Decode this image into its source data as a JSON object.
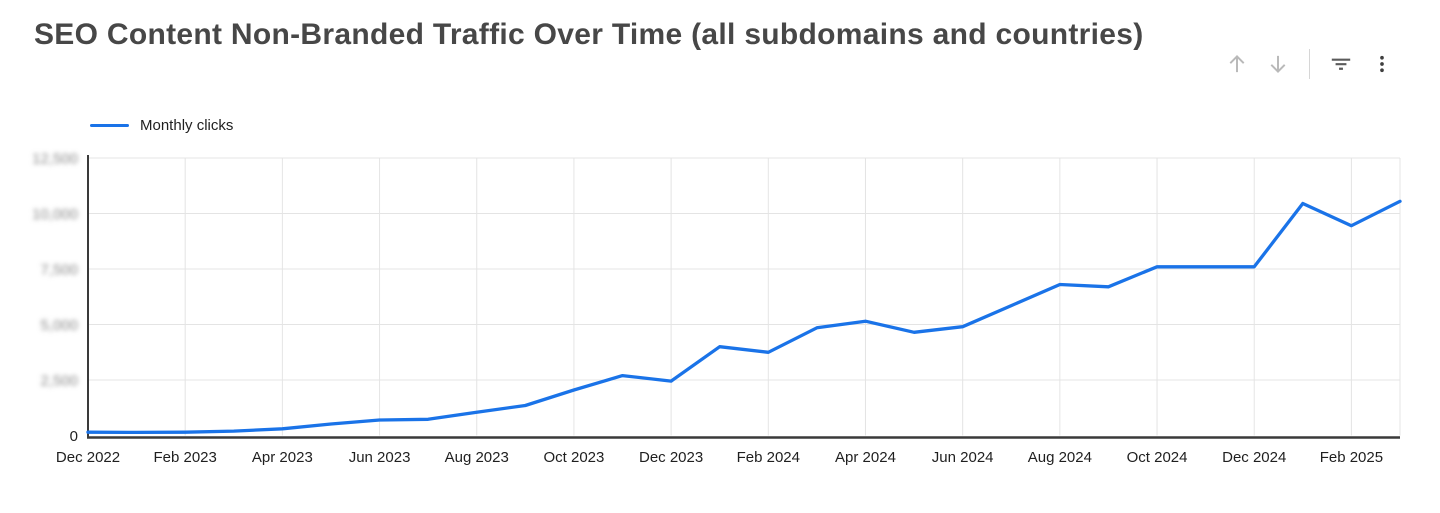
{
  "header": {
    "title": "SEO Content Non-Branded Traffic Over Time (all subdomains and countries)"
  },
  "controls": {
    "icons": [
      {
        "name": "arrow-up-icon"
      },
      {
        "name": "arrow-down-icon"
      },
      {
        "name": "filter-list-icon"
      },
      {
        "name": "kebab-menu-icon"
      }
    ]
  },
  "legend": {
    "label": "Monthly clicks",
    "swatch_color": "#1a73e8"
  },
  "colors": {
    "line": "#1a73e8",
    "grid": "#e4e4e4",
    "axis": "#3a3a3a",
    "tick_label": "#1f1f1f",
    "blurred_label": "#8a8a8a",
    "title": "#474747",
    "arrow_icon": "#b9b9b9",
    "filter_icon": "#5b5b5b",
    "kebab_icon": "#3f3f3f"
  },
  "chart_data": {
    "type": "line",
    "title": "SEO Content Non-Branded Traffic Over Time (all subdomains and countries)",
    "x": [
      "Dec 2022",
      "Jan 2023",
      "Feb 2023",
      "Mar 2023",
      "Apr 2023",
      "May 2023",
      "Jun 2023",
      "Jul 2023",
      "Aug 2023",
      "Sep 2023",
      "Oct 2023",
      "Nov 2023",
      "Dec 2023",
      "Jan 2024",
      "Feb 2024",
      "Mar 2024",
      "Apr 2024",
      "May 2024",
      "Jun 2024",
      "Jul 2024",
      "Aug 2024",
      "Sep 2024",
      "Oct 2024",
      "Nov 2024",
      "Dec 2024",
      "Jan 2025",
      "Feb 2025",
      "Mar 2025"
    ],
    "series": [
      {
        "name": "Monthly clicks",
        "color": "#1a73e8",
        "values": [
          150,
          140,
          150,
          200,
          300,
          520,
          700,
          730,
          1050,
          1350,
          2050,
          2700,
          2450,
          4000,
          3750,
          4850,
          5150,
          4650,
          4900,
          5850,
          6800,
          6700,
          7600,
          7600,
          7600,
          10450,
          9450,
          10550
        ]
      }
    ],
    "x_tick_every": 2,
    "x_tick_labels": [
      "Dec 2022",
      "Feb 2023",
      "Apr 2023",
      "Jun 2023",
      "Aug 2023",
      "Oct 2023",
      "Dec 2023",
      "Feb 2024",
      "Apr 2024",
      "Jun 2024",
      "Aug 2024",
      "Oct 2024",
      "Dec 2024",
      "Feb 2025"
    ],
    "y_ticks": [
      0,
      2500,
      5000,
      7500,
      10000,
      12500
    ],
    "y_tick_labels": [
      "0",
      "2,500",
      "5,000",
      "7,500",
      "10,000",
      "12,500"
    ],
    "y_labels_blurred_except_zero": true,
    "ylim": [
      0,
      12500
    ],
    "grid": true,
    "legend_position": "top-left",
    "xlabel": "",
    "ylabel": ""
  }
}
